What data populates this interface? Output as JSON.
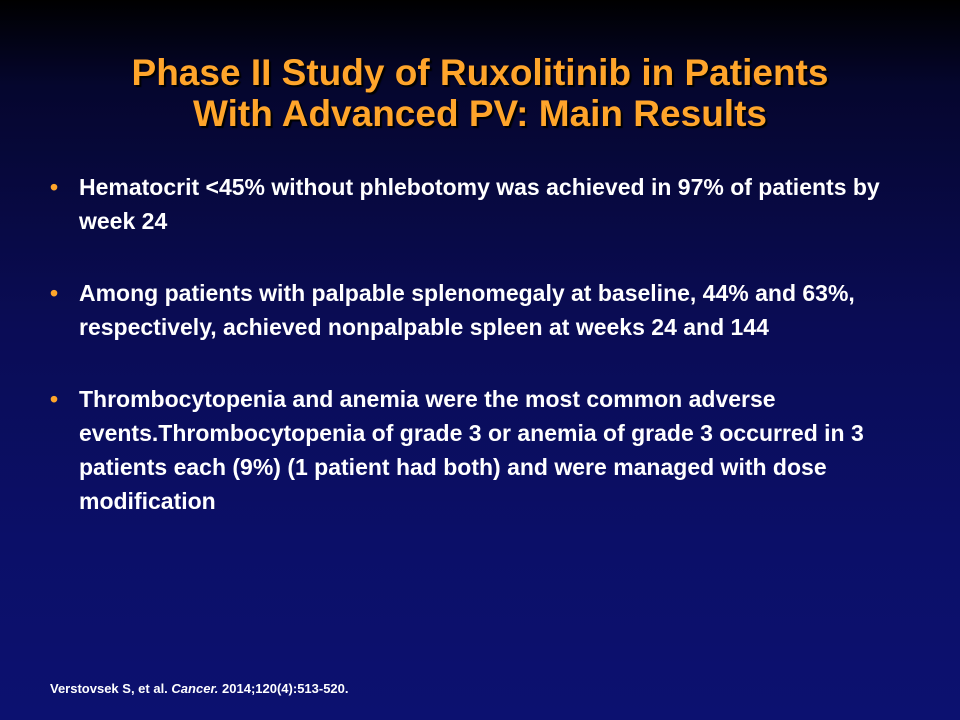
{
  "slide": {
    "title_line1": "Phase II Study of Ruxolitinib in Patients",
    "title_line2": "With Advanced PV: Main Results",
    "bullet_glyph": "•",
    "bullets": [
      "Hematocrit <45% without phlebotomy was achieved in 97% of patients by week 24",
      "Among patients with palpable splenomegaly at baseline, 44% and 63%, respectively, achieved nonpalpable spleen at weeks 24 and 144",
      "Thrombocytopenia and anemia were the most common adverse events.Thrombocytopenia of grade 3 or anemia of grade 3 occurred in 3 patients each (9%) (1 patient had both) and were managed with dose modification"
    ],
    "citation": {
      "authors": "Verstovsek S, et al.",
      "journal": "Cancer.",
      "details": "2014;120(4):513-520."
    }
  },
  "colors": {
    "title": "#ffa52b",
    "bullet_text": "#ffffff",
    "bullet_marker": "#ffa52b",
    "background_top": "#000000",
    "background_bottom": "#0c1170"
  }
}
